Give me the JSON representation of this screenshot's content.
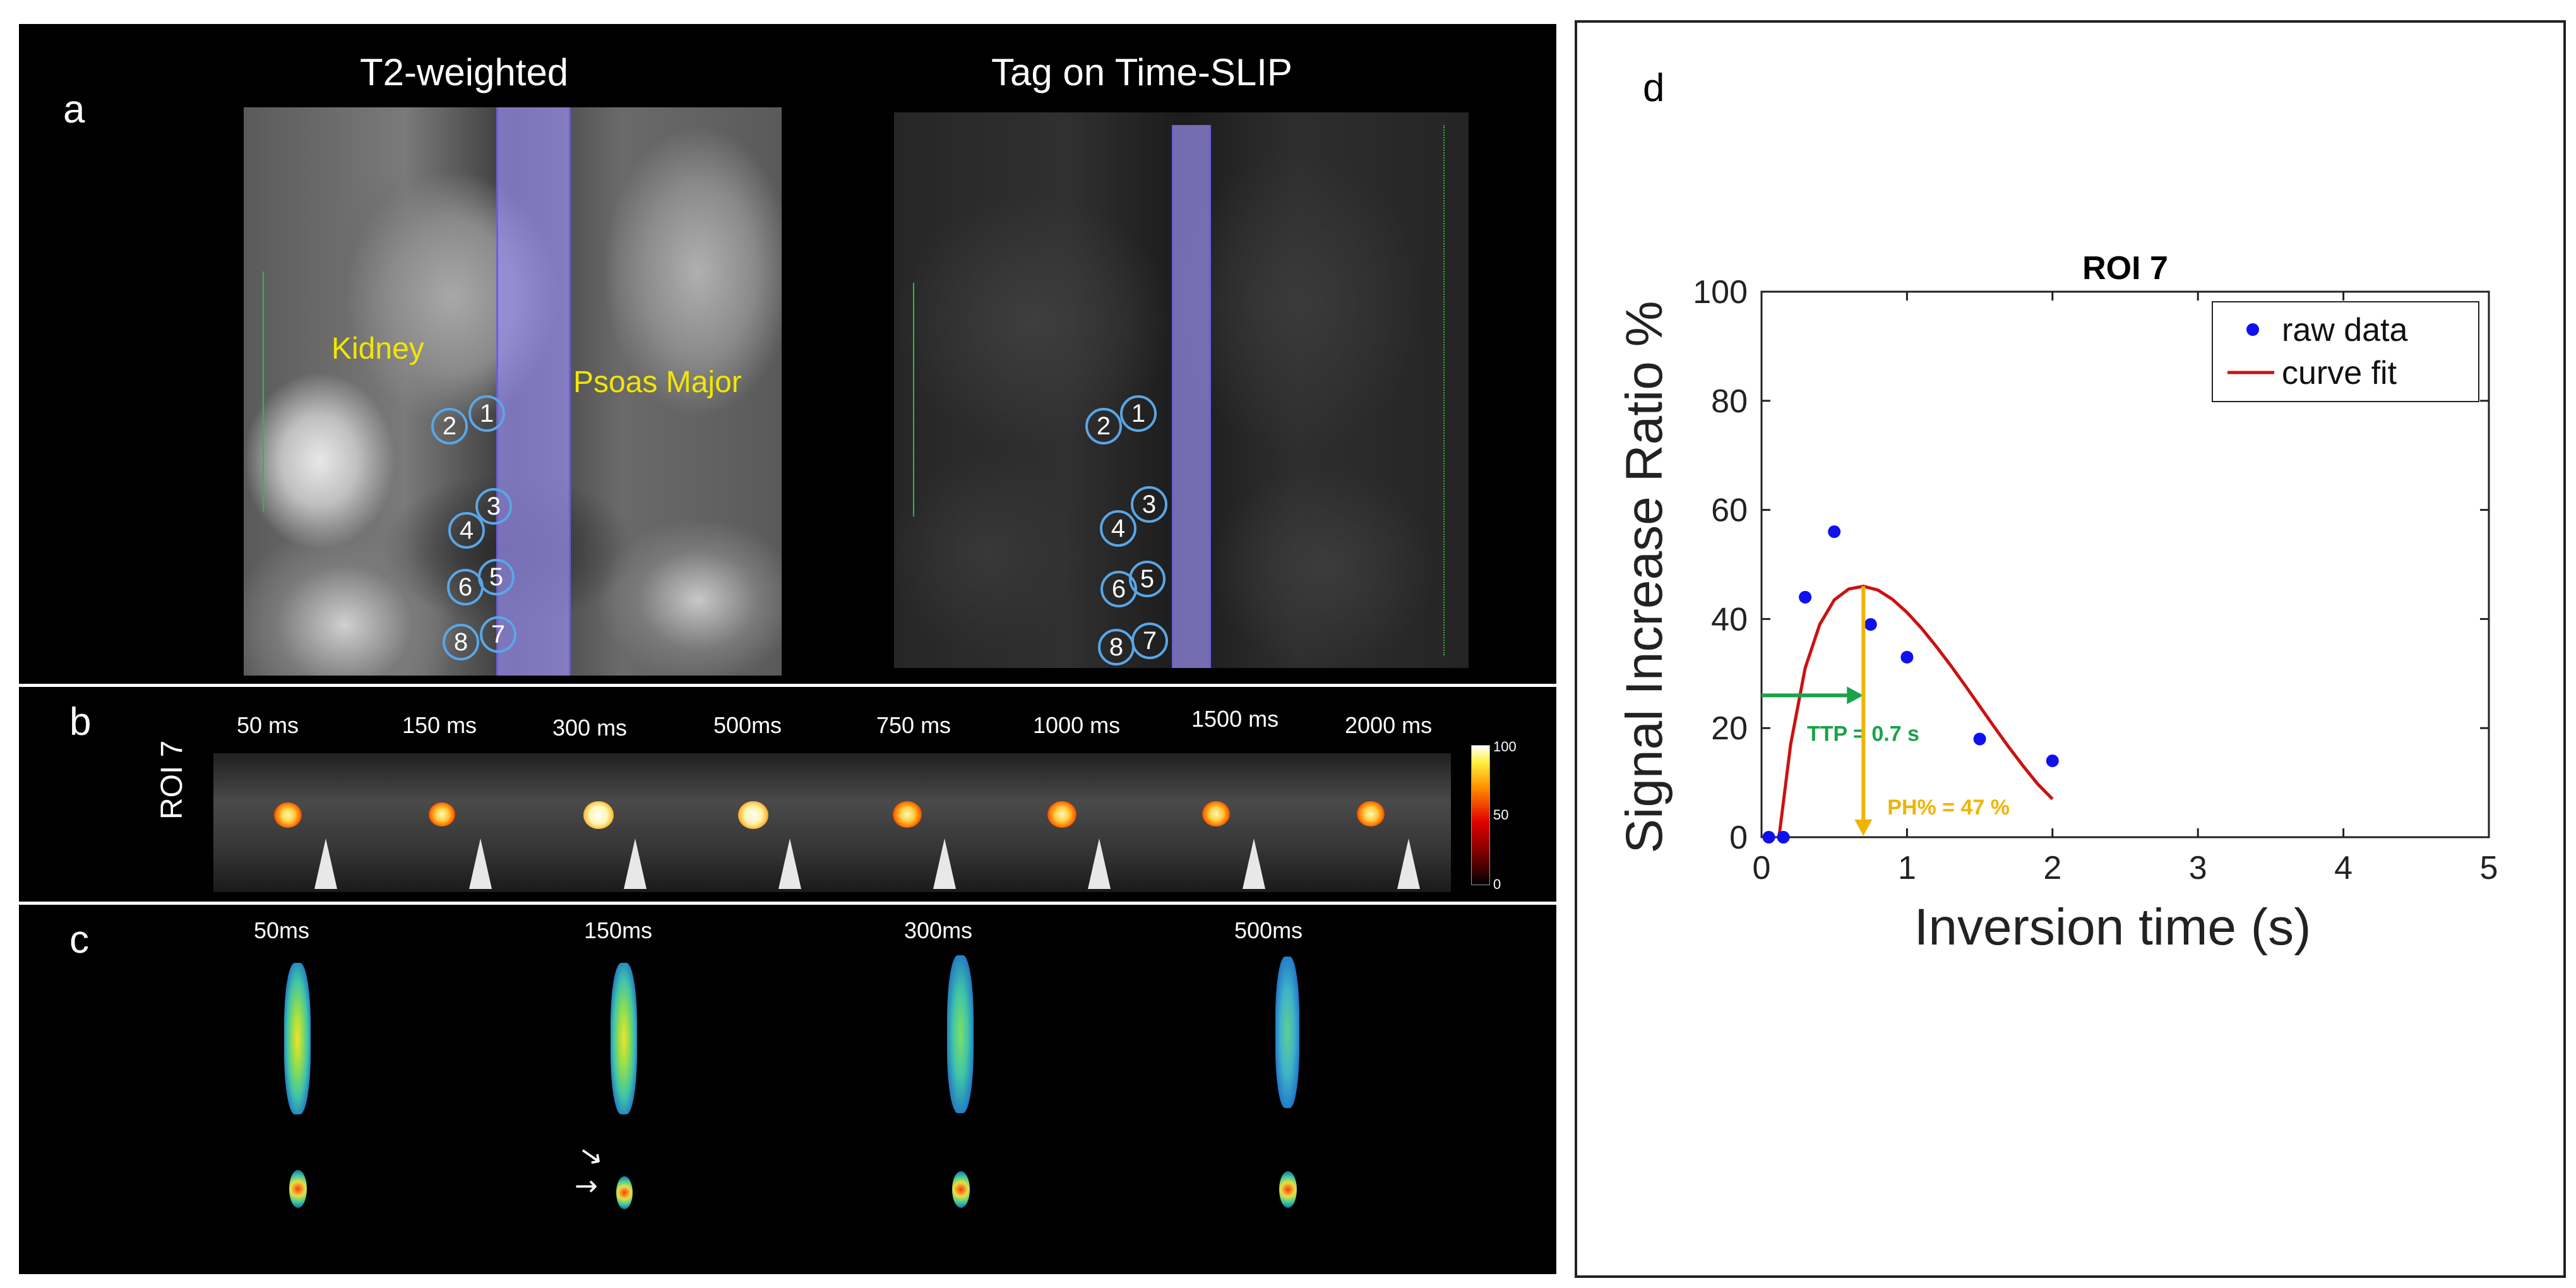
{
  "panels": {
    "a": {
      "label": "a",
      "left_title": "T2-weighted",
      "right_title": "Tag on Time-SLIP",
      "kidney_label": "Kidney",
      "psoas_label": "Psoas Major",
      "left_rois": [
        "1",
        "2",
        "3",
        "4",
        "5",
        "6",
        "7",
        "8"
      ],
      "right_rois": [
        "1",
        "2",
        "3",
        "4",
        "5",
        "6",
        "7",
        "8"
      ]
    },
    "b": {
      "label": "b",
      "row_label": "ROI 7",
      "times": [
        "50 ms",
        "150 ms",
        "300 ms",
        "500ms",
        "750 ms",
        "1000 ms",
        "1500 ms",
        "2000 ms"
      ],
      "colorbar_max": "100",
      "colorbar_mid": "50",
      "colorbar_min": "0"
    },
    "c": {
      "label": "c",
      "times": [
        "50ms",
        "150ms",
        "300ms",
        "500ms"
      ]
    },
    "d": {
      "label": "d"
    }
  },
  "colors": {
    "raw_data": "#1010ee",
    "curve_fit": "#cc1111",
    "ttp_arrow": "#1aa34a",
    "ph_arrow": "#f0b400",
    "label_tag": "#5b4fc9"
  },
  "chart_data": {
    "type": "scatter",
    "title": "ROI 7",
    "xlabel": "Inversion time (s)",
    "ylabel": "Signal Increase Ratio %",
    "xlim": [
      0,
      5
    ],
    "ylim": [
      0,
      100
    ],
    "xticks": [
      "0",
      "1",
      "2",
      "3",
      "4",
      "5"
    ],
    "yticks": [
      "0",
      "20",
      "40",
      "60",
      "80",
      "100"
    ],
    "legend": {
      "position": "top-right",
      "entries": [
        "raw data",
        "curve fit"
      ]
    },
    "series": [
      {
        "name": "raw data",
        "kind": "scatter",
        "x": [
          0.05,
          0.15,
          0.3,
          0.5,
          0.75,
          1.0,
          1.5,
          2.0
        ],
        "y": [
          0,
          0,
          44,
          56,
          39,
          33,
          18,
          14
        ]
      },
      {
        "name": "curve fit",
        "kind": "line",
        "x": [
          0.12,
          0.2,
          0.3,
          0.4,
          0.5,
          0.6,
          0.7,
          0.8,
          0.9,
          1.0,
          1.1,
          1.2,
          1.3,
          1.4,
          1.5,
          1.6,
          1.7,
          1.8,
          1.9,
          2.0
        ],
        "y": [
          0,
          17,
          31,
          39,
          43.5,
          45.5,
          46,
          45.3,
          43.6,
          41.2,
          38.3,
          35.0,
          31.5,
          27.8,
          24.0,
          20.2,
          16.5,
          13.0,
          9.7,
          7
        ]
      }
    ],
    "annotations": {
      "ttp_text": "TTP = 0.7 s",
      "ttp_x": 0.7,
      "ttp_y": 26,
      "ph_text": "PH% = 47 %",
      "ph_x": 0.7,
      "ph_top": 46,
      "ph_bottom": 0
    }
  }
}
